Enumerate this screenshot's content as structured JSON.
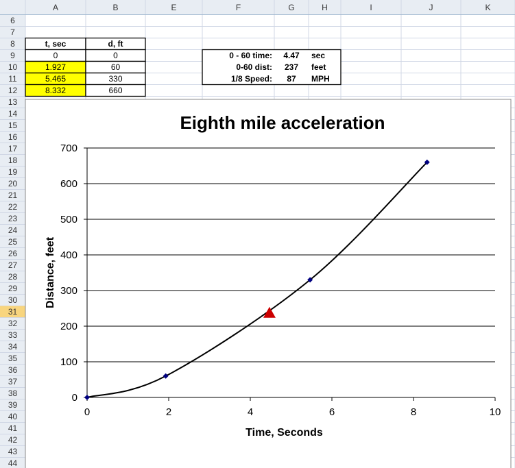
{
  "columns": [
    "A",
    "B",
    "E",
    "F",
    "G",
    "H",
    "I",
    "J",
    "K"
  ],
  "rows": [
    6,
    7,
    8,
    9,
    10,
    11,
    12,
    13,
    14,
    15,
    16,
    17,
    18,
    19,
    20,
    21,
    22,
    23,
    24,
    25,
    26,
    27,
    28,
    29,
    30,
    31,
    32,
    33,
    34,
    35,
    36,
    37,
    38,
    39,
    40,
    41,
    42,
    43,
    44
  ],
  "active_row": 31,
  "data_table": {
    "header": [
      "t, sec",
      "d, ft"
    ],
    "rows": [
      [
        0,
        0
      ],
      [
        1.927,
        60
      ],
      [
        5.465,
        330
      ],
      [
        8.332,
        660
      ]
    ],
    "highlight": [
      false,
      true,
      true,
      true
    ],
    "highlight_color": "#ffff00"
  },
  "summary": {
    "rows": [
      [
        "0 - 60 time:",
        4.47,
        "sec"
      ],
      [
        "0-60 dist:",
        237,
        "feet"
      ],
      [
        "1/8 Speed:",
        87,
        "MPH"
      ]
    ]
  },
  "chart_data": {
    "type": "scatter",
    "title": "Eighth mile acceleration",
    "x_label": "Time, Seconds",
    "y_label": "Distance, feet",
    "xlim": [
      0,
      10
    ],
    "ylim": [
      0,
      700
    ],
    "xticks": [
      0,
      2,
      4,
      6,
      8,
      10
    ],
    "yticks": [
      0,
      100,
      200,
      300,
      400,
      500,
      600,
      700
    ],
    "grid": true,
    "series": [
      {
        "x": [
          0,
          1.927,
          5.465,
          8.332
        ],
        "values": [
          0,
          60,
          330,
          660
        ],
        "color": "#000080",
        "line_color": "#000000",
        "marker": "diamond",
        "smooth": true
      },
      {
        "x": [
          4.47
        ],
        "values": [
          237
        ],
        "color": "#cc0000",
        "marker": "triangle"
      }
    ]
  }
}
